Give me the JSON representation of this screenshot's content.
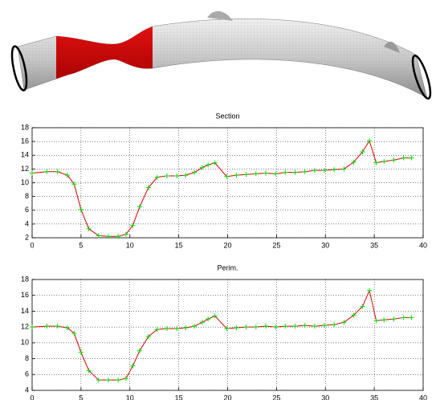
{
  "chart_data": [
    {
      "type": "line",
      "title": "Section",
      "x": [
        0,
        1.5,
        2.6,
        3.6,
        4.3,
        5.0,
        5.8,
        6.8,
        7.8,
        8.8,
        9.6,
        10.3,
        11.0,
        11.9,
        12.8,
        13.8,
        14.8,
        15.7,
        16.6,
        17.4,
        18.0,
        18.7,
        19.9,
        20.9,
        21.9,
        22.9,
        23.9,
        24.9,
        25.9,
        26.9,
        27.9,
        28.9,
        29.9,
        30.9,
        31.9,
        32.9,
        33.8,
        34.5,
        35.2,
        36.0,
        37.0,
        38.0,
        38.8
      ],
      "series": [
        {
          "color": "#d40000",
          "marker_color": "#00e000",
          "values": [
            11.4,
            11.6,
            11.6,
            11.1,
            9.8,
            6.1,
            3.3,
            2.3,
            2.2,
            2.2,
            2.5,
            3.8,
            6.5,
            9.3,
            10.8,
            11.0,
            11.0,
            11.1,
            11.5,
            12.2,
            12.6,
            12.9,
            10.9,
            11.1,
            11.2,
            11.3,
            11.4,
            11.3,
            11.5,
            11.5,
            11.6,
            11.8,
            11.8,
            11.9,
            12.0,
            13.0,
            14.5,
            16.1,
            12.9,
            13.1,
            13.3,
            13.6,
            13.6
          ]
        }
      ],
      "xlim": [
        0,
        40
      ],
      "xticks": [
        0,
        5,
        10,
        15,
        20,
        25,
        30,
        35,
        40
      ],
      "ylim": [
        2,
        18
      ],
      "yticks": [
        2,
        4,
        6,
        8,
        10,
        12,
        14,
        16,
        18
      ],
      "grid": true
    },
    {
      "type": "line",
      "title": "Perim.",
      "x": [
        0,
        1.5,
        2.6,
        3.6,
        4.3,
        5.0,
        5.8,
        6.8,
        7.8,
        8.8,
        9.6,
        10.3,
        11.0,
        11.9,
        12.8,
        13.8,
        14.8,
        15.7,
        16.6,
        17.4,
        18.0,
        18.7,
        19.9,
        20.9,
        21.9,
        22.9,
        23.9,
        24.9,
        25.9,
        26.9,
        27.9,
        28.9,
        29.9,
        30.9,
        31.9,
        32.9,
        33.8,
        34.5,
        35.2,
        36.0,
        37.0,
        38.0,
        38.8
      ],
      "series": [
        {
          "color": "#d40000",
          "marker_color": "#00e000",
          "values": [
            12.0,
            12.1,
            12.1,
            11.9,
            11.2,
            8.8,
            6.5,
            5.3,
            5.3,
            5.3,
            5.5,
            7.1,
            9.0,
            10.8,
            11.7,
            11.8,
            11.8,
            11.9,
            12.1,
            12.6,
            13.0,
            13.4,
            11.8,
            11.9,
            12.0,
            12.0,
            12.1,
            12.0,
            12.1,
            12.1,
            12.2,
            12.1,
            12.2,
            12.3,
            12.6,
            13.5,
            14.6,
            16.6,
            12.8,
            12.9,
            13.0,
            13.2,
            13.2
          ]
        }
      ],
      "xlim": [
        0,
        40
      ],
      "xticks": [
        0,
        5,
        10,
        15,
        20,
        25,
        30,
        35,
        40
      ],
      "ylim": [
        4,
        18
      ],
      "yticks": [
        4,
        6,
        8,
        10,
        12,
        14,
        16,
        18
      ],
      "grid": true
    }
  ]
}
